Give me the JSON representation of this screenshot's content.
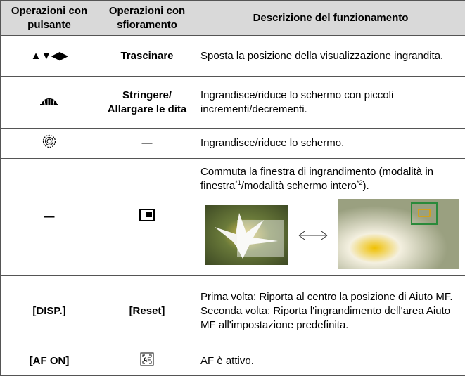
{
  "table": {
    "header": [
      "Operazioni con pulsante",
      "Operazioni con sfioramento",
      "Descrizione del funzionamento"
    ],
    "rows": [
      [
        "▲▼◀▶",
        "Trascinare",
        "Sposta la posizione della visualizzazione ingrandita."
      ],
      [
        "Stringere/ Allargare le dita",
        "Ingrandisce/riduce lo schermo con piccoli incrementi/decrementi."
      ],
      [
        "—",
        "Ingrandisce/riduce lo schermo."
      ],
      [
        "—",
        [
          "Commuta la finestra di ingrandimento (modalità in finestra",
          "*1",
          "/modalità schermo intero",
          "*2",
          ")."
        ]
      ],
      [
        "[DISP.]",
        "[Reset]",
        "Prima volta: Riporta al centro la posizione di Aiuto MF.",
        "Seconda volta: Riporta l'ingrandimento dell'area Aiuto MF all'impostazione predefinita."
      ],
      [
        "[AF ON]",
        "AF è attivo."
      ]
    ]
  }
}
